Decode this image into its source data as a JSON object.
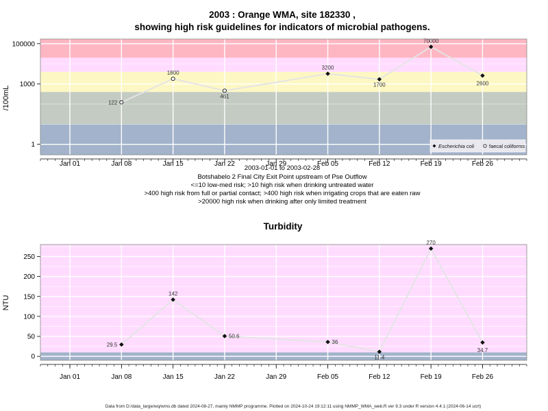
{
  "chart_data": [
    {
      "type": "line",
      "title_line1": "2003 : Orange WMA, site 182330 ,",
      "title_line2": "showing high risk guidelines for indicators of microbial pathogens.",
      "ylabel": "/100mL",
      "yscale": "log",
      "ylim": [
        0.3,
        170000
      ],
      "yticks": [
        {
          "value": 1,
          "label": "1"
        },
        {
          "value": 1000,
          "label": "1000"
        },
        {
          "value": 100000,
          "label": "100000"
        }
      ],
      "x_range": [
        "2002-12-28",
        "2003-03-04"
      ],
      "xticks": [
        {
          "date": "2003-01-01",
          "label": "Jan 01"
        },
        {
          "date": "2003-01-08",
          "label": "Jan 08"
        },
        {
          "date": "2003-01-15",
          "label": "Jan 15"
        },
        {
          "date": "2003-01-22",
          "label": "Jan 22"
        },
        {
          "date": "2003-01-29",
          "label": "Jan 29"
        },
        {
          "date": "2003-02-05",
          "label": "Feb 05"
        },
        {
          "date": "2003-02-12",
          "label": "Feb 12"
        },
        {
          "date": "2003-02-19",
          "label": "Feb 19"
        },
        {
          "date": "2003-02-26",
          "label": "Feb 26"
        }
      ],
      "bands": [
        {
          "from": 0.3,
          "to": 10,
          "color": "#a2b3cb"
        },
        {
          "from": 10,
          "to": 400,
          "color": "#c3cbc2"
        },
        {
          "from": 400,
          "to": 4000,
          "color": "#fdf8c3"
        },
        {
          "from": 4000,
          "to": 20000,
          "color": "#ffdcff"
        },
        {
          "from": 20000,
          "to": 170000,
          "color": "#ffb6c3"
        }
      ],
      "series": [
        {
          "name": "faecal coliforms",
          "marker": "open-circle",
          "points": [
            {
              "date": "2003-01-08",
              "value": 122,
              "label": "122"
            },
            {
              "date": "2003-01-15",
              "value": 1800,
              "label": "1800"
            },
            {
              "date": "2003-01-22",
              "value": 461,
              "label": "461"
            }
          ]
        },
        {
          "name": "Escherichia coli",
          "marker": "filled-diamond",
          "points": [
            {
              "date": "2003-02-05",
              "value": 3200,
              "label": "3200"
            },
            {
              "date": "2003-02-12",
              "value": 1700,
              "label": "1700"
            },
            {
              "date": "2003-02-19",
              "value": 70000,
              "label": "70000"
            },
            {
              "date": "2003-02-26",
              "value": 2600,
              "label": "2600"
            }
          ]
        }
      ],
      "legend_position": "bottom-right",
      "date_range_text": "2003-01-01 to 2003-02-28",
      "notes": [
        "Botshabelo 2 Final City Exit Point upstream of Pse Outflow",
        "<=10 low-med risk; >10 high risk when drinking untreated water",
        ">400 high risk from full or partial contact; >400 high risk when irrigating crops that are eaten raw",
        ">20000 high risk when drinking after only limited treatment"
      ]
    },
    {
      "type": "line",
      "title": "Turbidity",
      "ylabel": "NTU",
      "ylim": [
        -10,
        280
      ],
      "yticks": [
        {
          "value": 0,
          "label": "0"
        },
        {
          "value": 50,
          "label": "50"
        },
        {
          "value": 100,
          "label": "100"
        },
        {
          "value": 150,
          "label": "150"
        },
        {
          "value": 200,
          "label": "200"
        },
        {
          "value": 250,
          "label": "250"
        }
      ],
      "x_range": [
        "2002-12-28",
        "2003-03-04"
      ],
      "xticks": [
        {
          "date": "2003-01-01",
          "label": "Jan 01"
        },
        {
          "date": "2003-01-08",
          "label": "Jan 08"
        },
        {
          "date": "2003-01-15",
          "label": "Jan 15"
        },
        {
          "date": "2003-01-22",
          "label": "Jan 22"
        },
        {
          "date": "2003-01-29",
          "label": "Jan 29"
        },
        {
          "date": "2003-02-05",
          "label": "Feb 05"
        },
        {
          "date": "2003-02-12",
          "label": "Feb 12"
        },
        {
          "date": "2003-02-19",
          "label": "Feb 19"
        },
        {
          "date": "2003-02-26",
          "label": "Feb 26"
        }
      ],
      "bands": [
        {
          "from": -10,
          "to": 10,
          "color": "#a2b3cb"
        },
        {
          "from": 10,
          "to": 280,
          "color": "#ffdcff"
        }
      ],
      "series": [
        {
          "name": "",
          "marker": "filled-diamond",
          "points": [
            {
              "date": "2003-01-08",
              "value": 29.5,
              "label": "29.5"
            },
            {
              "date": "2003-01-15",
              "value": 142,
              "label": "142"
            },
            {
              "date": "2003-01-22",
              "value": 50.6,
              "label": "50.6"
            },
            {
              "date": "2003-02-05",
              "value": 36,
              "label": "36"
            },
            {
              "date": "2003-02-12",
              "value": 11.4,
              "label": "11.4"
            },
            {
              "date": "2003-02-19",
              "value": 270,
              "label": "270"
            },
            {
              "date": "2003-02-26",
              "value": 34.7,
              "label": "34.7"
            }
          ]
        }
      ]
    }
  ],
  "footer": "Data from D:/data_large/wq/wms.db dated 2024-08-27, mainly NMMP programme. Plotted on 2024-10-24 19:12:11 using NMMP_WMA_web.R ver 9.3 under R version 4.4.1 (2024-06-14 ucrt)"
}
